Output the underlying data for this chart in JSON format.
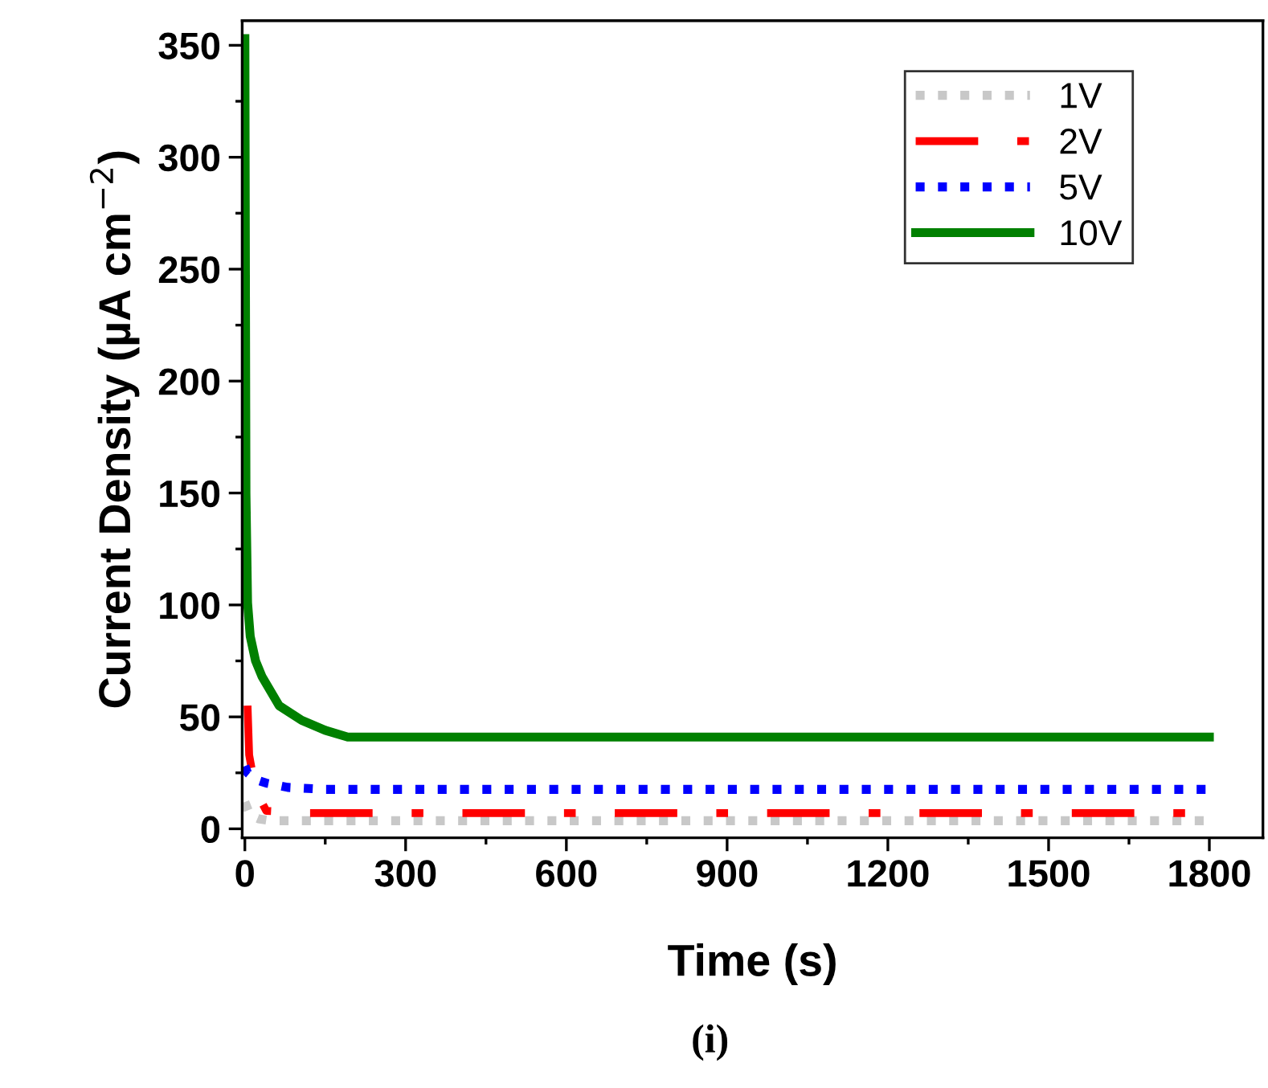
{
  "chart_data": {
    "type": "line",
    "xlabel": "Time (s)",
    "ylabel": "Current Density (µA cm$^{−2}$)",
    "annotations": [
      "(i)"
    ],
    "xlim": [
      -5,
      1900
    ],
    "xticks": [
      0,
      300,
      600,
      900,
      1200,
      1500,
      1800
    ],
    "ylim": [
      -4,
      361
    ],
    "yticks": [
      0,
      50,
      100,
      150,
      200,
      250,
      300,
      350
    ],
    "grid": false,
    "legend": "top right",
    "series": [
      {
        "name": "1V",
        "color": "#c8c8c8",
        "line_style": "dotted",
        "x": [
          0,
          10,
          25,
          50,
          200,
          600,
          1000,
          1400,
          1800
        ],
        "values": [
          12,
          6,
          4.5,
          3.6,
          3.6,
          3.6,
          3.6,
          3.6,
          3.6
        ]
      },
      {
        "name": "2V",
        "color": "#ff0000",
        "line_style": "dashed",
        "x": [
          5,
          8,
          20,
          40,
          120,
          400,
          800,
          1200,
          1600,
          1765
        ],
        "values": [
          55,
          33,
          17,
          8,
          7,
          7,
          7,
          7,
          7,
          7
        ]
      },
      {
        "name": "5V",
        "color": "#0000ff",
        "line_style": "dotted",
        "x": [
          0,
          5,
          20,
          40,
          80,
          150,
          400,
          800,
          1200,
          1600,
          1800
        ],
        "values": [
          28,
          25,
          22,
          20.4,
          18.5,
          17.6,
          17.6,
          17.6,
          17.6,
          17.6,
          17.6
        ]
      },
      {
        "name": "10V",
        "color": "#008000",
        "line_style": "solid",
        "x": [
          0,
          2,
          5,
          10,
          20,
          32,
          64,
          106,
          150,
          192,
          200,
          600,
          1000,
          1400,
          1800
        ],
        "values": [
          353,
          150,
          101,
          86,
          75,
          68,
          55,
          48.5,
          44,
          41,
          41,
          41,
          41,
          41,
          41
        ]
      }
    ]
  }
}
